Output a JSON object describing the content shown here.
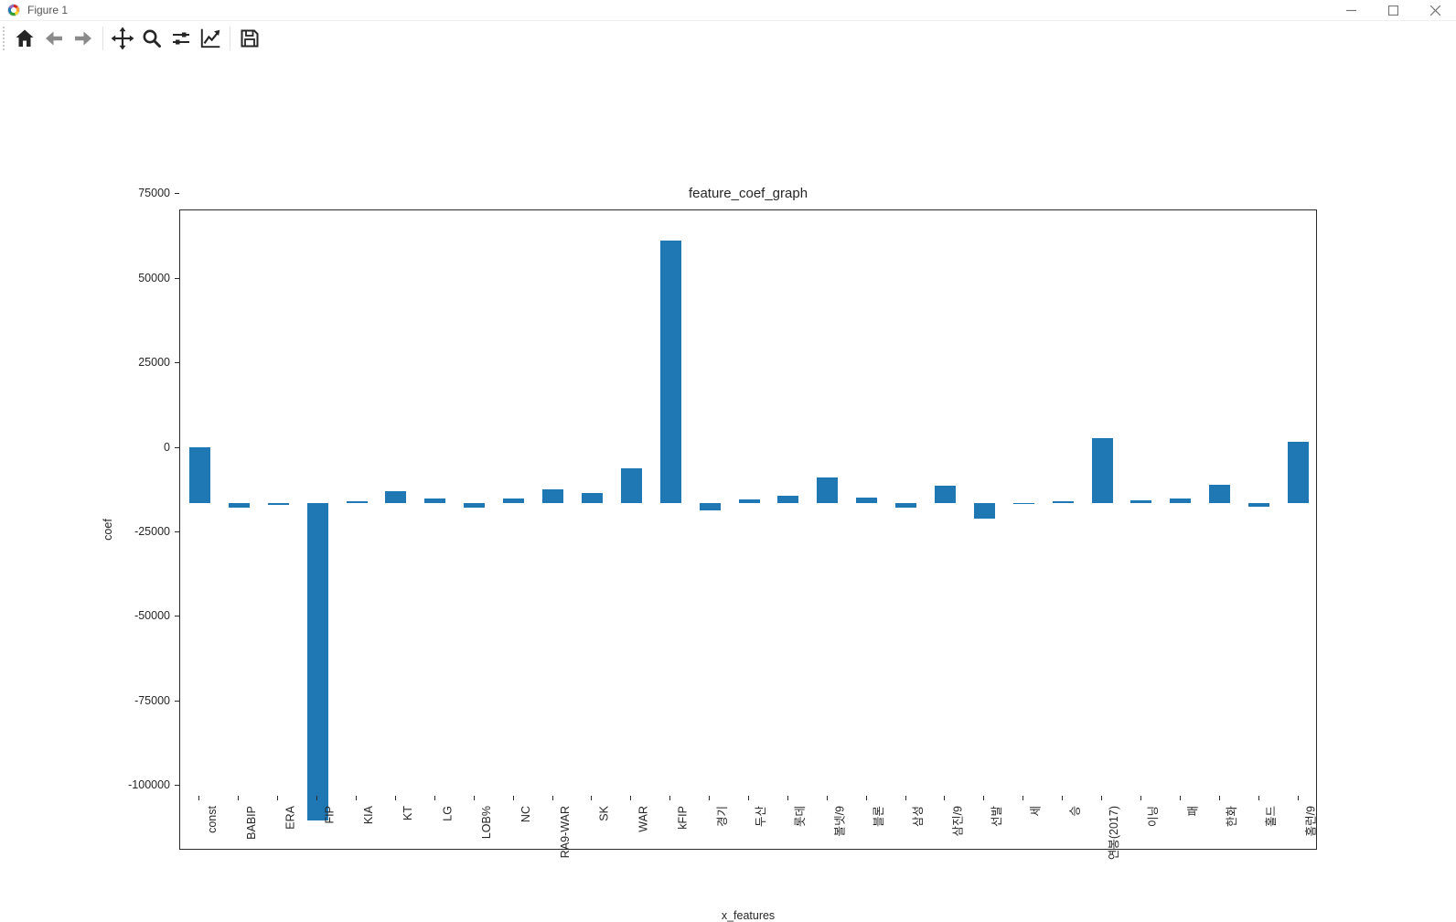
{
  "window": {
    "title": "Figure 1",
    "app_icon": "matplotlib-logo",
    "controls": {
      "minimize": "minimize",
      "maximize": "maximize",
      "close": "close"
    }
  },
  "toolbar": {
    "buttons": [
      {
        "label": "Home",
        "icon": "home-icon"
      },
      {
        "label": "Back",
        "icon": "arrow-left-icon"
      },
      {
        "label": "Forward",
        "icon": "arrow-right-icon"
      },
      {
        "label": "Pan",
        "icon": "move-cross-icon"
      },
      {
        "label": "Zoom",
        "icon": "magnifier-icon"
      },
      {
        "label": "Configure subplots",
        "icon": "sliders-icon"
      },
      {
        "label": "Edit parameters",
        "icon": "line-chart-icon"
      },
      {
        "label": "Save",
        "icon": "floppy-disk-icon"
      }
    ]
  },
  "chart_data": {
    "type": "bar",
    "title": "feature_coef_graph",
    "xlabel": "x_features",
    "ylabel": "coef",
    "bar_color": "#1f77b4",
    "grid": false,
    "legend": null,
    "ylim": [
      -103000,
      86500
    ],
    "yticks": [
      75000,
      50000,
      25000,
      0,
      -25000,
      -50000,
      -75000,
      -100000
    ],
    "categories": [
      "const",
      "BABIP",
      "ERA",
      "FIP",
      "KIA",
      "KT",
      "LG",
      "LOB%",
      "NC",
      "RA9-WAR",
      "SK",
      "WAR",
      "kFIP",
      "경기",
      "두산",
      "롯데",
      "볼넷/9",
      "블론",
      "삼성",
      "삼진/9",
      "선발",
      "세",
      "승",
      "연봉(2017)",
      "이닝",
      "패",
      "한화",
      "홀드",
      "홈런/9"
    ],
    "values": [
      16500,
      -1600,
      -700,
      -94000,
      400,
      3400,
      1100,
      -1400,
      1300,
      3900,
      2800,
      10100,
      77500,
      -2300,
      900,
      2100,
      7400,
      1500,
      -1400,
      5100,
      -4800,
      -500,
      300,
      19200,
      800,
      1300,
      5300,
      -1100,
      18000
    ]
  }
}
